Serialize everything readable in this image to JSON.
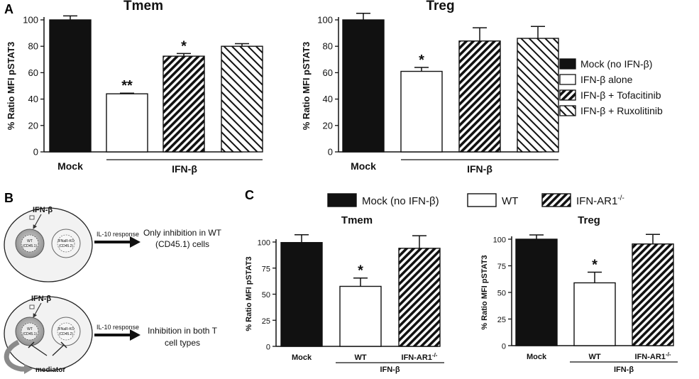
{
  "panel_labels": {
    "a": "A",
    "b": "B",
    "c": "C"
  },
  "panel_a_legend": [
    {
      "label": "Mock (no IFN-β)",
      "style": "solid"
    },
    {
      "label": "IFN-β alone",
      "style": "open"
    },
    {
      "label": "IFN-β + Tofacitinib",
      "style": "dense"
    },
    {
      "label": "IFN-β + Ruxolitinib",
      "style": "sparse"
    }
  ],
  "panel_c_legend": [
    {
      "label": "Mock (no IFN-β)",
      "style": "solid"
    },
    {
      "label": "WT",
      "style": "open"
    },
    {
      "label": "IFN-AR1",
      "sup": "-/-",
      "style": "dense"
    }
  ],
  "diagram": {
    "top": {
      "stimulus": "IFN-β",
      "cell_wt": "WT",
      "cell_wt_sub": "(CD45.1)",
      "cell_ko": "IFNaR-KO",
      "cell_ko_sub": "(CD45.2)",
      "arrow_label": "IL-10 response",
      "result_line1": "Only inhibition in WT",
      "result_line2": "(CD45.1) cells"
    },
    "bottom": {
      "stimulus": "IFN-β",
      "cell_wt": "WT",
      "cell_wt_sub": "(CD45.1)",
      "cell_ko": "IFNaR-KO",
      "cell_ko_sub": "(CD45.2)",
      "mediator": "mediator",
      "arrow_label": "IL-10 response",
      "result_line1": "Inhibition in both T",
      "result_line2": "cell types"
    }
  },
  "colors": {
    "ink": "#111111",
    "background": "#ffffff"
  },
  "chart_data": [
    {
      "id": "A-Tmem",
      "type": "bar",
      "title": "Tmem",
      "ylabel": "% Ratio MFI pSTAT3",
      "ylim": [
        0,
        100
      ],
      "yticks": [
        0,
        20,
        40,
        60,
        80,
        100
      ],
      "categories": [
        "Mock",
        "IFN-β alone",
        "IFN-β + Tofacitinib",
        "IFN-β + Ruxolitinib"
      ],
      "values": [
        100,
        44,
        72.5,
        80
      ],
      "errors": [
        3,
        0.5,
        2,
        2
      ],
      "styles": [
        "solid",
        "open",
        "dense",
        "sparse"
      ],
      "annotations": [
        "",
        "**",
        "*",
        ""
      ],
      "xlabels": [
        {
          "text": "Mock",
          "bars": [
            0
          ]
        }
      ],
      "group_label": {
        "text": "IFN-β",
        "bars": [
          1,
          3
        ]
      }
    },
    {
      "id": "A-Treg",
      "type": "bar",
      "title": "Treg",
      "ylabel": "% Ratio MFI pSTAT3",
      "ylim": [
        0,
        100
      ],
      "yticks": [
        0,
        20,
        40,
        60,
        80,
        100
      ],
      "categories": [
        "Mock",
        "IFN-β alone",
        "IFN-β + Tofacitinib",
        "IFN-β + Ruxolitinib"
      ],
      "values": [
        100,
        61,
        84,
        86
      ],
      "errors": [
        5,
        3,
        10,
        9
      ],
      "styles": [
        "solid",
        "open",
        "dense",
        "sparse"
      ],
      "annotations": [
        "",
        "*",
        "",
        ""
      ],
      "xlabels": [
        {
          "text": "Mock",
          "bars": [
            0
          ]
        }
      ],
      "group_label": {
        "text": "IFN-β",
        "bars": [
          1,
          3
        ]
      }
    },
    {
      "id": "C-Tmem",
      "type": "bar",
      "title": "Tmem",
      "ylabel": "% Ratio MFI pSTAT3",
      "ylim": [
        0,
        100
      ],
      "yticks": [
        0,
        25,
        50,
        75,
        100
      ],
      "categories": [
        "Mock",
        "WT",
        "IFN-AR1-/-"
      ],
      "values": [
        99.5,
        57.5,
        94
      ],
      "errors": [
        7.5,
        8,
        12
      ],
      "styles": [
        "solid",
        "open",
        "dense"
      ],
      "annotations": [
        "",
        "*",
        ""
      ],
      "xlabels": [
        {
          "text": "Mock",
          "bars": [
            0
          ]
        },
        {
          "text": "WT",
          "bars": [
            1
          ]
        },
        {
          "text": "IFN-AR1",
          "sup": "-/-",
          "bars": [
            2
          ]
        }
      ],
      "group_label": {
        "text": "IFN-β",
        "bars": [
          1,
          2
        ]
      }
    },
    {
      "id": "C-Treg",
      "type": "bar",
      "title": "Treg",
      "ylabel": "% Ratio MFI pSTAT3",
      "ylim": [
        0,
        100
      ],
      "yticks": [
        0,
        25,
        50,
        75,
        100
      ],
      "categories": [
        "Mock",
        "WT",
        "IFN-AR1-/-"
      ],
      "values": [
        100,
        59,
        95.5
      ],
      "errors": [
        4,
        10,
        9
      ],
      "styles": [
        "solid",
        "open",
        "dense"
      ],
      "annotations": [
        "",
        "*",
        ""
      ],
      "xlabels": [
        {
          "text": "Mock",
          "bars": [
            0
          ]
        },
        {
          "text": "WT",
          "bars": [
            1
          ]
        },
        {
          "text": "IFN-AR1",
          "sup": "-/-",
          "bars": [
            2
          ]
        }
      ],
      "group_label": {
        "text": "IFN-β",
        "bars": [
          1,
          2
        ]
      }
    }
  ]
}
